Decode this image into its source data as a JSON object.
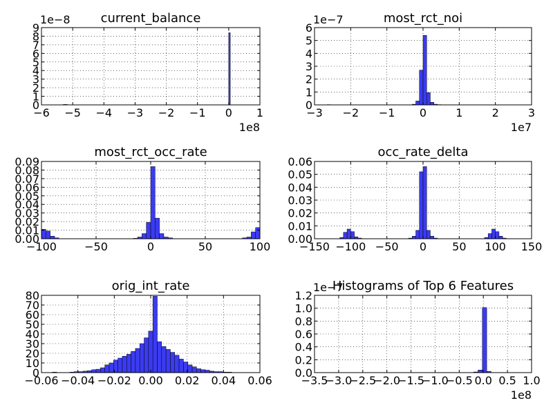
{
  "chart_data": [
    {
      "type": "bar",
      "title": "current_balance",
      "xlim": [
        -600000000,
        100000000
      ],
      "ylim": [
        0,
        9e-08
      ],
      "xticks": [
        "−6",
        "−5",
        "−4",
        "−3",
        "−2",
        "−1",
        "0",
        "1"
      ],
      "yticks": [
        "0",
        "1",
        "2",
        "3",
        "4",
        "5",
        "6",
        "7",
        "8",
        "9"
      ],
      "x_offset": "1e8",
      "y_offset": "1e−8",
      "grid": true,
      "bins": [
        {
          "x0": -530000000,
          "x1": -517000000,
          "y": 5e-10
        },
        {
          "x0": 0,
          "x1": 5000000,
          "y": 8.4e-08
        }
      ]
    },
    {
      "type": "bar",
      "title": "most_rct_noi",
      "xlim": [
        -30000000,
        30000000
      ],
      "ylim": [
        0,
        6e-07
      ],
      "xticks": [
        "−3",
        "−2",
        "−1",
        "0",
        "1",
        "2",
        "3"
      ],
      "yticks": [
        "0",
        "1",
        "2",
        "3",
        "4",
        "5",
        "6"
      ],
      "x_offset": "1e7",
      "y_offset": "1e−7",
      "grid": true,
      "bins": [
        {
          "x0": -26500000,
          "x1": -25500000,
          "y": 2e-09
        },
        {
          "x0": -3000000,
          "x1": -2000000,
          "y": 5e-09
        },
        {
          "x0": -2000000,
          "x1": -1000000,
          "y": 3e-08
        },
        {
          "x0": -1000000,
          "x1": 0,
          "y": 2.7e-07
        },
        {
          "x0": 0,
          "x1": 1000000,
          "y": 5.4e-07
        },
        {
          "x0": 1000000,
          "x1": 2000000,
          "y": 9.5e-08
        },
        {
          "x0": 2000000,
          "x1": 3000000,
          "y": 2e-08
        },
        {
          "x0": 3000000,
          "x1": 4000000,
          "y": 5e-09
        },
        {
          "x0": 4000000,
          "x1": 5000000,
          "y": 2e-09
        }
      ]
    },
    {
      "type": "bar",
      "title": "most_rct_occ_rate",
      "xlim": [
        -100,
        100
      ],
      "ylim": [
        0,
        0.09
      ],
      "xticks": [
        "−100",
        "−50",
        "0",
        "50",
        "100"
      ],
      "yticks": [
        "0.00",
        "0.01",
        "0.02",
        "0.03",
        "0.04",
        "0.05",
        "0.06",
        "0.07",
        "0.08",
        "0.09"
      ],
      "x_offset": "",
      "y_offset": "",
      "grid": true,
      "bins": [
        {
          "x0": -100,
          "x1": -96,
          "y": 0.011
        },
        {
          "x0": -96,
          "x1": -92,
          "y": 0.009
        },
        {
          "x0": -92,
          "x1": -88,
          "y": 0.003
        },
        {
          "x0": -88,
          "x1": -84,
          "y": 0.001
        },
        {
          "x0": -16,
          "x1": -12,
          "y": 0.0005
        },
        {
          "x0": -12,
          "x1": -8,
          "y": 0.002
        },
        {
          "x0": -8,
          "x1": -4,
          "y": 0.006
        },
        {
          "x0": -4,
          "x1": 0,
          "y": 0.019
        },
        {
          "x0": 0,
          "x1": 4,
          "y": 0.084
        },
        {
          "x0": 4,
          "x1": 8,
          "y": 0.024
        },
        {
          "x0": 8,
          "x1": 12,
          "y": 0.006
        },
        {
          "x0": 12,
          "x1": 16,
          "y": 0.002
        },
        {
          "x0": 16,
          "x1": 20,
          "y": 0.001
        },
        {
          "x0": 84,
          "x1": 88,
          "y": 0.001
        },
        {
          "x0": 88,
          "x1": 92,
          "y": 0.002
        },
        {
          "x0": 92,
          "x1": 96,
          "y": 0.008
        },
        {
          "x0": 96,
          "x1": 100,
          "y": 0.013
        }
      ]
    },
    {
      "type": "bar",
      "title": "occ_rate_delta",
      "xlim": [
        -150,
        150
      ],
      "ylim": [
        0,
        0.06
      ],
      "xticks": [
        "−150",
        "−100",
        "−50",
        "0",
        "50",
        "100",
        "150"
      ],
      "yticks": [
        "0.00",
        "0.01",
        "0.02",
        "0.03",
        "0.04",
        "0.05",
        "0.06"
      ],
      "x_offset": "",
      "y_offset": "",
      "grid": true,
      "bins": [
        {
          "x0": -115,
          "x1": -110,
          "y": 0.001
        },
        {
          "x0": -110,
          "x1": -105,
          "y": 0.005
        },
        {
          "x0": -105,
          "x1": -100,
          "y": 0.0075
        },
        {
          "x0": -100,
          "x1": -95,
          "y": 0.0055
        },
        {
          "x0": -95,
          "x1": -90,
          "y": 0.0015
        },
        {
          "x0": -90,
          "x1": -85,
          "y": 0.0005
        },
        {
          "x0": -20,
          "x1": -15,
          "y": 0.0005
        },
        {
          "x0": -15,
          "x1": -10,
          "y": 0.002
        },
        {
          "x0": -10,
          "x1": -5,
          "y": 0.0065
        },
        {
          "x0": -5,
          "x1": 0,
          "y": 0.052
        },
        {
          "x0": 0,
          "x1": 5,
          "y": 0.056
        },
        {
          "x0": 5,
          "x1": 10,
          "y": 0.0065
        },
        {
          "x0": 10,
          "x1": 15,
          "y": 0.002
        },
        {
          "x0": 15,
          "x1": 20,
          "y": 0.0005
        },
        {
          "x0": 85,
          "x1": 90,
          "y": 0.001
        },
        {
          "x0": 90,
          "x1": 95,
          "y": 0.004
        },
        {
          "x0": 95,
          "x1": 100,
          "y": 0.0075
        },
        {
          "x0": 100,
          "x1": 105,
          "y": 0.0055
        },
        {
          "x0": 105,
          "x1": 110,
          "y": 0.002
        },
        {
          "x0": 110,
          "x1": 115,
          "y": 0.0005
        }
      ]
    },
    {
      "type": "bar",
      "title": "orig_int_rate",
      "xlim": [
        -0.06,
        0.06
      ],
      "ylim": [
        0,
        80
      ],
      "xticks": [
        "−0.06",
        "−0.04",
        "−0.02",
        "0.00",
        "0.02",
        "0.04",
        "0.06"
      ],
      "yticks": [
        "0",
        "10",
        "20",
        "30",
        "40",
        "50",
        "60",
        "70",
        "80"
      ],
      "x_offset": "",
      "y_offset": "",
      "grid": true,
      "bins": [
        {
          "x0": -0.054,
          "x1": -0.0516,
          "y": 0.5
        },
        {
          "x0": -0.0444,
          "x1": -0.042,
          "y": 0.5
        },
        {
          "x0": -0.042,
          "x1": -0.0396,
          "y": 1
        },
        {
          "x0": -0.0396,
          "x1": -0.0372,
          "y": 1
        },
        {
          "x0": -0.0372,
          "x1": -0.0348,
          "y": 1.5
        },
        {
          "x0": -0.0348,
          "x1": -0.0324,
          "y": 2
        },
        {
          "x0": -0.0324,
          "x1": -0.03,
          "y": 3
        },
        {
          "x0": -0.03,
          "x1": -0.0276,
          "y": 3.5
        },
        {
          "x0": -0.0276,
          "x1": -0.0252,
          "y": 5
        },
        {
          "x0": -0.0252,
          "x1": -0.0228,
          "y": 8
        },
        {
          "x0": -0.0228,
          "x1": -0.0204,
          "y": 10
        },
        {
          "x0": -0.0204,
          "x1": -0.018,
          "y": 13
        },
        {
          "x0": -0.018,
          "x1": -0.0156,
          "y": 15
        },
        {
          "x0": -0.0156,
          "x1": -0.0132,
          "y": 17
        },
        {
          "x0": -0.0132,
          "x1": -0.0108,
          "y": 19
        },
        {
          "x0": -0.0108,
          "x1": -0.0084,
          "y": 22
        },
        {
          "x0": -0.0084,
          "x1": -0.006,
          "y": 25
        },
        {
          "x0": -0.006,
          "x1": -0.0036,
          "y": 30
        },
        {
          "x0": -0.0036,
          "x1": -0.0012,
          "y": 36
        },
        {
          "x0": -0.0012,
          "x1": 0.0012,
          "y": 43
        },
        {
          "x0": 0.0012,
          "x1": 0.0036,
          "y": 79
        },
        {
          "x0": 0.0036,
          "x1": 0.006,
          "y": 32
        },
        {
          "x0": 0.006,
          "x1": 0.0084,
          "y": 27
        },
        {
          "x0": 0.0084,
          "x1": 0.0108,
          "y": 24
        },
        {
          "x0": 0.0108,
          "x1": 0.0132,
          "y": 21
        },
        {
          "x0": 0.0132,
          "x1": 0.0156,
          "y": 18
        },
        {
          "x0": 0.0156,
          "x1": 0.018,
          "y": 14
        },
        {
          "x0": 0.018,
          "x1": 0.0204,
          "y": 11
        },
        {
          "x0": 0.0204,
          "x1": 0.0228,
          "y": 8
        },
        {
          "x0": 0.0228,
          "x1": 0.0252,
          "y": 6
        },
        {
          "x0": 0.0252,
          "x1": 0.0276,
          "y": 4
        },
        {
          "x0": 0.0276,
          "x1": 0.03,
          "y": 3
        },
        {
          "x0": 0.03,
          "x1": 0.0324,
          "y": 2.5
        },
        {
          "x0": 0.0324,
          "x1": 0.0348,
          "y": 1.5
        },
        {
          "x0": 0.0348,
          "x1": 0.0372,
          "y": 1
        },
        {
          "x0": 0.0372,
          "x1": 0.0396,
          "y": 1
        },
        {
          "x0": 0.0396,
          "x1": 0.042,
          "y": 0.5
        },
        {
          "x0": 0.042,
          "x1": 0.0444,
          "y": 0.5
        }
      ]
    },
    {
      "type": "bar",
      "title": "Histograms of Top 6 Features",
      "xlim": [
        -350000000,
        100000000
      ],
      "ylim": [
        0,
        1.2e-07
      ],
      "xticks": [
        "−3.5",
        "−3.0",
        "−2.5",
        "−2.0",
        "−1.5",
        "−1.0",
        "−0.5",
        "0.0",
        "0.5",
        "1.0"
      ],
      "yticks": [
        "0.0",
        "0.2",
        "0.4",
        "0.6",
        "0.8",
        "1.0",
        "1.2"
      ],
      "x_offset": "1e8",
      "y_offset": "1e−7",
      "grid": true,
      "bins": [
        {
          "x0": -20000000,
          "x1": -11000000,
          "y": 1e-09
        },
        {
          "x0": -11000000,
          "x1": -2000000,
          "y": 4e-09
        },
        {
          "x0": -2000000,
          "x1": 7000000,
          "y": 1.01e-07
        },
        {
          "x0": 7000000,
          "x1": 16000000,
          "y": 2e-09
        }
      ]
    }
  ]
}
